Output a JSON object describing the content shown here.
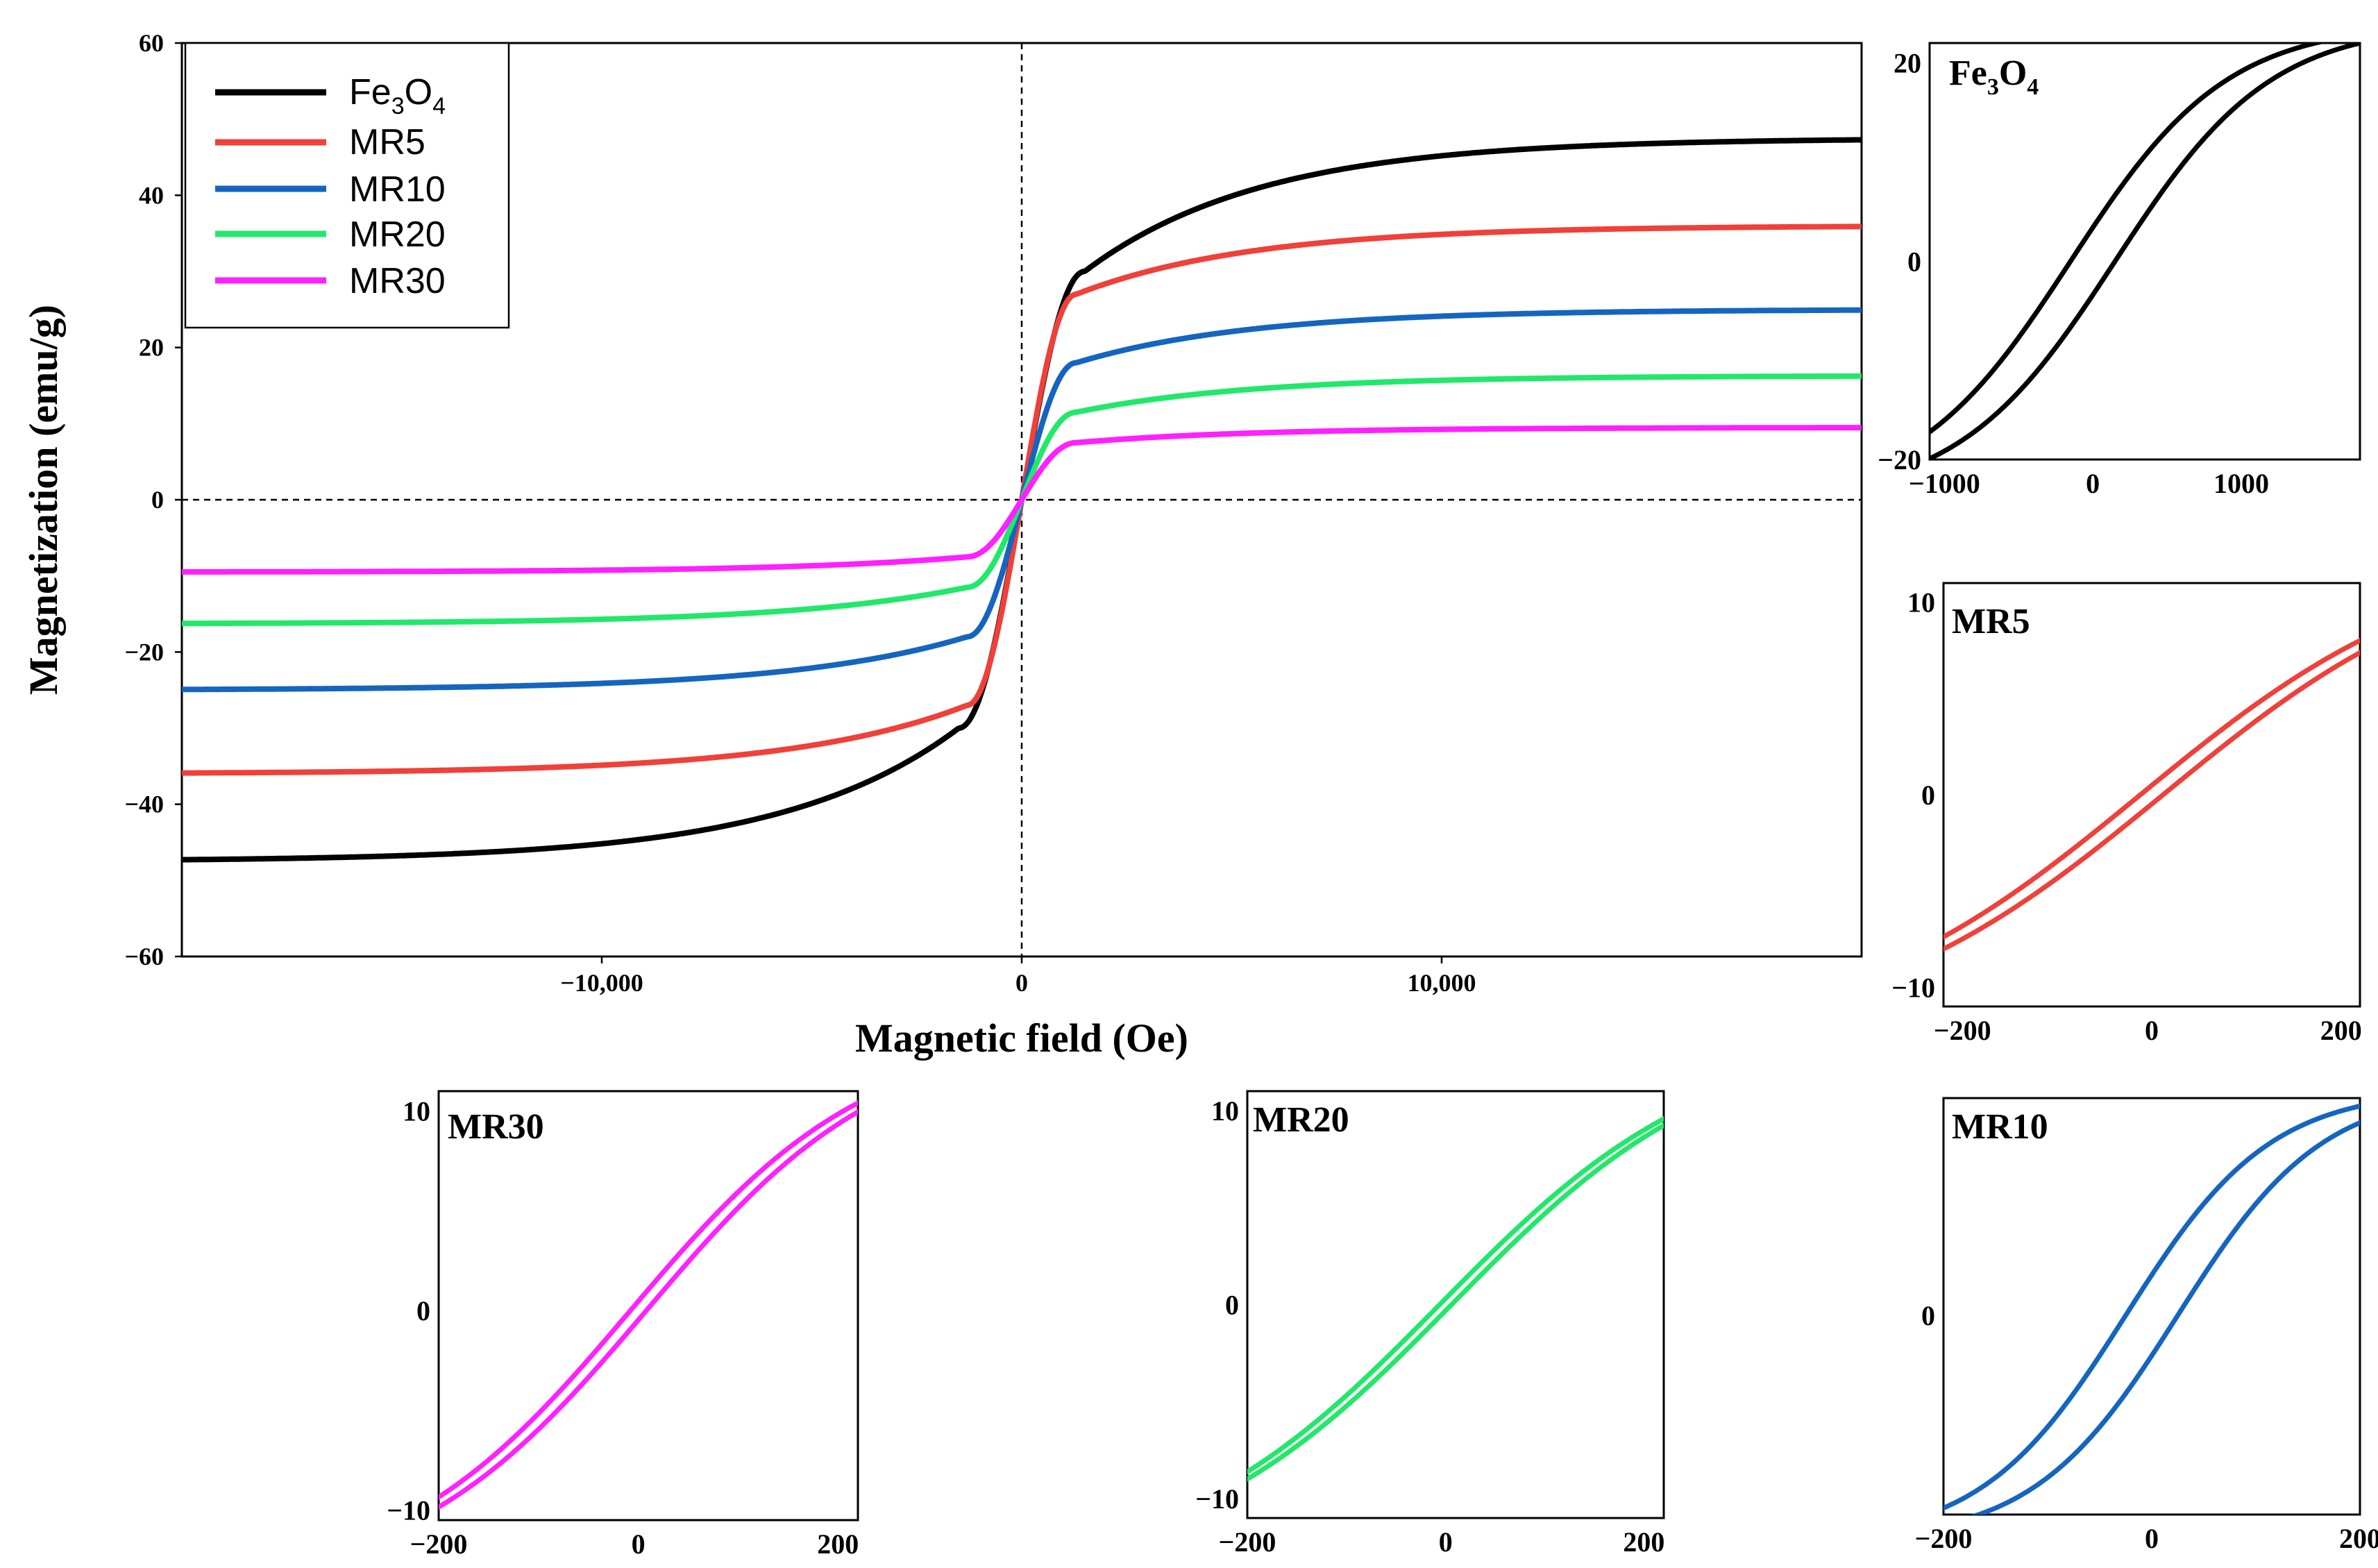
{
  "chart_data": [
    {
      "id": "main",
      "type": "line",
      "xlabel": "Magnetic field (Oe)",
      "ylabel": "Magnetization (emu/g)",
      "xlim": [
        -20000,
        20000
      ],
      "ylim": [
        -60,
        60
      ],
      "x_ticks": [
        -10000,
        0,
        10000
      ],
      "x_tick_labels": [
        "−10,000",
        "0",
        "10,000"
      ],
      "y_ticks": [
        -60,
        -40,
        -20,
        0,
        20,
        40,
        60
      ],
      "y_tick_labels": [
        "−60",
        "−40",
        "−20",
        "0",
        "20",
        "40",
        "60"
      ],
      "reference_lines": [
        "x = 0 (dashed)",
        "y = 0 (dashed)"
      ],
      "legend_position": "top-left",
      "series": [
        {
          "name": "Fe3O4",
          "label_main": "Fe",
          "label_sub1": "3",
          "label_mid": "O",
          "label_sub2": "4",
          "color": "#000000",
          "ms": 47.5,
          "knee_field": 1500,
          "knee_value": 30
        },
        {
          "name": "MR5",
          "label": "MR5",
          "color": "#f0403a",
          "ms": 36,
          "knee_field": 1300,
          "knee_value": 27
        },
        {
          "name": "MR10",
          "label": "MR10",
          "color": "#1565c0",
          "ms": 25,
          "knee_field": 1300,
          "knee_value": 18
        },
        {
          "name": "MR20",
          "label": "MR20",
          "color": "#22e86a",
          "ms": 16.3,
          "knee_field": 1300,
          "knee_value": 11.5
        },
        {
          "name": "MR30",
          "label": "MR30",
          "color": "#ff20ff",
          "ms": 9.5,
          "knee_field": 1300,
          "knee_value": 7.5
        }
      ]
    },
    {
      "id": "inset-fe3o4",
      "type": "line",
      "title": "Fe3O4",
      "title_main": "Fe",
      "title_sub1": "3",
      "title_mid": "O",
      "title_sub2": "4",
      "color": "#000000",
      "xlim": [
        -1100,
        1800
      ],
      "ylim": [
        -20,
        22
      ],
      "x_tick_labels": [
        "−1000",
        "0",
        "1000"
      ],
      "x_ticks": [
        -1000,
        0,
        1000
      ],
      "y_tick_labels": [
        "−20",
        "0",
        "20"
      ],
      "y_ticks": [
        -20,
        0,
        20
      ],
      "loop_offset": 150,
      "saturation": 24,
      "slope_scale": 0.00095
    },
    {
      "id": "inset-mr5",
      "type": "line",
      "title": "MR5",
      "color": "#f0403a",
      "xlim": [
        -220,
        220
      ],
      "ylim": [
        -11,
        11
      ],
      "x_tick_labels": [
        "−200",
        "0",
        "200"
      ],
      "x_ticks": [
        -200,
        0,
        200
      ],
      "y_tick_labels": [
        "−10",
        "0",
        "10"
      ],
      "y_ticks": [
        -10,
        0,
        10
      ],
      "loop_offset": 12,
      "saturation": 13,
      "slope_scale": 0.0031
    },
    {
      "id": "inset-mr30",
      "type": "line",
      "title": "MR30",
      "color": "#ff20ff",
      "xlim": [
        -200,
        220
      ],
      "ylim": [
        -10.5,
        11
      ],
      "x_tick_labels": [
        "−200",
        "0",
        "200"
      ],
      "x_ticks": [
        -200,
        0,
        200
      ],
      "y_tick_labels": [
        "−10",
        "0",
        "10"
      ],
      "y_ticks": [
        -10,
        0,
        10
      ],
      "loop_offset": 8,
      "saturation": 14,
      "slope_scale": 0.0042
    },
    {
      "id": "inset-mr20",
      "type": "line",
      "title": "MR20",
      "color": "#22e86a",
      "xlim": [
        -200,
        220
      ],
      "ylim": [
        -11,
        11
      ],
      "x_tick_labels": [
        "−200",
        "0",
        "200"
      ],
      "x_ticks": [
        -200,
        0,
        200
      ],
      "y_tick_labels": [
        "−10",
        "0",
        "10"
      ],
      "y_ticks": [
        -10,
        0,
        10
      ],
      "loop_offset": 6,
      "saturation": 14,
      "slope_scale": 0.0037
    },
    {
      "id": "inset-mr10",
      "type": "line",
      "title": "MR10",
      "color": "#1565c0",
      "xlim": [
        -200,
        200
      ],
      "ylim": [
        -11,
        12
      ],
      "x_tick_labels": [
        "−200",
        "0",
        "200"
      ],
      "x_ticks": [
        -200,
        0,
        200
      ],
      "y_tick_labels": [
        "0"
      ],
      "y_ticks": [
        0
      ],
      "loop_offset": 25,
      "saturation": 12.5,
      "slope_scale": 0.0072
    }
  ]
}
